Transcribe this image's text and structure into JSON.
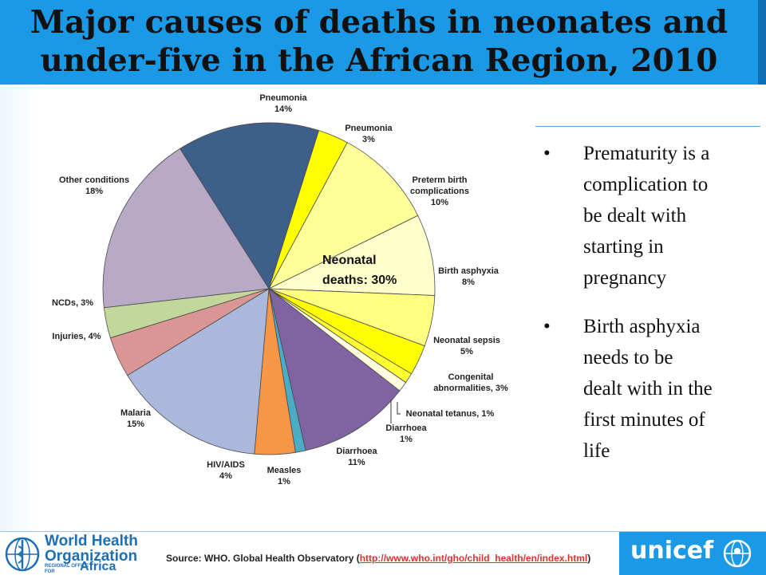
{
  "title_line1": "Major causes of deaths in neonates and",
  "title_line2": "under-five in the African Region, 2010",
  "chart_data": {
    "type": "pie",
    "title": "Major causes of deaths in neonates and under-five in the African Region, 2010",
    "center_label": [
      "Neonatal",
      "deaths: 30%"
    ],
    "slices": [
      {
        "name": "Pneumonia",
        "label": "Pneumonia",
        "pct_label": "14%",
        "value": 14,
        "color": "#3e5f8a"
      },
      {
        "name": "Pneumonia",
        "label": "Pneumonia",
        "pct_label": "3%",
        "value": 3,
        "color": "#ffff00"
      },
      {
        "name": "Preterm birth complications",
        "label": "Preterm birth complications",
        "pct_label": "10%",
        "value": 10,
        "color": "#ffff99"
      },
      {
        "name": "Birth asphyxia",
        "label": "Birth asphyxia",
        "pct_label": "8%",
        "value": 8,
        "color": "#ffffcc"
      },
      {
        "name": "Neonatal sepsis",
        "label": "Neonatal sepsis",
        "pct_label": "5%",
        "value": 5,
        "color": "#ffff80"
      },
      {
        "name": "Congenital abnormalities",
        "label": "Congenital abnormalities, 3%",
        "pct_label": "",
        "value": 3,
        "color": "#ffff00"
      },
      {
        "name": "Neonatal tetanus",
        "label": "Neonatal tetanus, 1%",
        "pct_label": "",
        "value": 1,
        "color": "#ffff33"
      },
      {
        "name": "Diarrhoea",
        "label": "Diarrhoea",
        "pct_label": "1%",
        "value": 1,
        "color": "#ffffe0"
      },
      {
        "name": "Diarrhoea",
        "label": "Diarrhoea",
        "pct_label": "11%",
        "value": 11,
        "color": "#8064a2"
      },
      {
        "name": "Measles",
        "label": "Measles",
        "pct_label": "1%",
        "value": 1,
        "color": "#4bacc6"
      },
      {
        "name": "HIV/AIDS",
        "label": "HIV/AIDS",
        "pct_label": "4%",
        "value": 4,
        "color": "#f79646"
      },
      {
        "name": "Malaria",
        "label": "Malaria",
        "pct_label": "15%",
        "value": 15,
        "color": "#aab8db"
      },
      {
        "name": "Injuries",
        "label": "Injuries, 4%",
        "pct_label": "",
        "value": 4,
        "color": "#d99694"
      },
      {
        "name": "NCDs",
        "label": "NCDs, 3%",
        "pct_label": "",
        "value": 3,
        "color": "#c3d69b"
      },
      {
        "name": "Other conditions",
        "label": "Other conditions",
        "pct_label": "18%",
        "value": 18,
        "color": "#b8a9c6"
      }
    ]
  },
  "bullets": [
    {
      "symbol": "•",
      "lines": [
        "Prematurity is a",
        "complication to",
        "be dealt with",
        "starting in",
        "pregnancy"
      ]
    },
    {
      "symbol": "•",
      "lines": [
        "Birth asphyxia",
        "needs to be",
        "dealt with in the",
        "first minutes  of",
        "life"
      ]
    }
  ],
  "footer": {
    "who_line1": "World Health",
    "who_line2": "Organization",
    "who_region_small": "REGIONAL OFFICE FOR",
    "who_region": "Africa",
    "source_prefix": "Source: WHO. Global Health Observatory (",
    "source_link": "http://www.who.int/gho/child_health/en/index.html",
    "source_suffix": ")",
    "unicef": "unicef"
  },
  "colors": {
    "title_bar": "#1a9ae6",
    "unicef_bar": "#1a9ae6",
    "who_blue": "#1d6fb5",
    "link": "#e03030"
  }
}
